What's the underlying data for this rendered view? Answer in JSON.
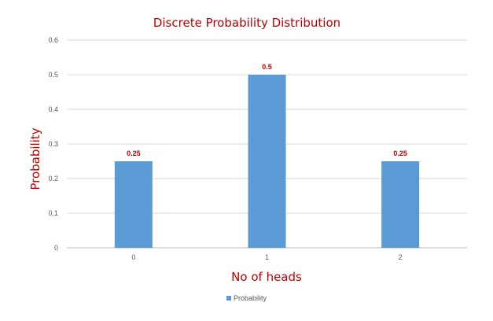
{
  "chart_data": {
    "type": "bar",
    "title": "Discrete Probability Distribution",
    "xlabel": "No of heads",
    "ylabel": "Probability",
    "categories": [
      "0",
      "1",
      "2"
    ],
    "series": [
      {
        "name": "Probability",
        "values": [
          0.25,
          0.5,
          0.25
        ],
        "color": "#5b9bd5"
      }
    ],
    "data_labels": [
      "0.25",
      "0.5",
      "0.25"
    ],
    "ylim": [
      0,
      0.6
    ],
    "yticks": [
      0,
      0.1,
      0.2,
      0.3,
      0.4,
      0.5,
      0.6
    ],
    "ytick_labels": [
      "0",
      "0.1",
      "0.2",
      "0.3",
      "0.4",
      "0.5",
      "0.6"
    ],
    "grid": true,
    "legend_position": "bottom",
    "text_color": "#c00000",
    "gridline_color": "#d9d9d9"
  }
}
